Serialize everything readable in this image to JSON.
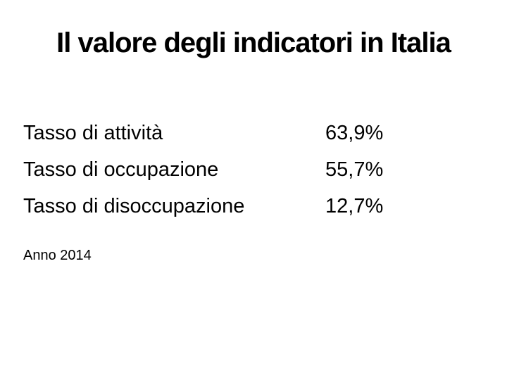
{
  "slide": {
    "title": "Il valore degli indicatori in Italia",
    "indicators": [
      {
        "label": "Tasso di attività",
        "value": "63,9%"
      },
      {
        "label": "Tasso di occupazione",
        "value": "55,7%"
      },
      {
        "label": "Tasso di disoccupazione",
        "value": "12,7%"
      }
    ],
    "footnote": "Anno 2014",
    "colors": {
      "background": "#ffffff",
      "text": "#000000"
    }
  }
}
